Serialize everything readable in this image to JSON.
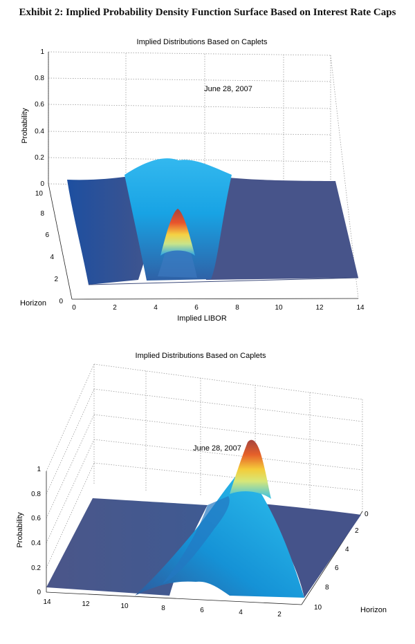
{
  "exhibit_title": "Exhibit 2:  Implied Probability Density Function Surface Based on Interest Rate Caps",
  "colors": {
    "surface_flat": "#47548a",
    "surface_mid": "#1f9fe0",
    "surface_peak": "#b5453d",
    "grid": "#9a9a9a"
  },
  "chart_data": [
    {
      "type": "surface",
      "view": "front",
      "title": "Implied Distributions Based on Caplets",
      "annotation": "June 28, 2007",
      "xlabel": "Implied LIBOR",
      "ylabel": "Horizon",
      "zlabel": "Probability",
      "x_ticks": [
        "0",
        "2",
        "4",
        "6",
        "8",
        "10",
        "12",
        "14"
      ],
      "y_ticks": [
        "0",
        "2",
        "4",
        "6",
        "8",
        "10"
      ],
      "z_ticks": [
        "0",
        "0.2",
        "0.4",
        "0.6",
        "0.8",
        "1"
      ],
      "xlim": [
        0,
        14
      ],
      "ylim": [
        0,
        10
      ],
      "zlim": [
        0,
        1
      ],
      "peak": {
        "libor": 5.3,
        "horizon": 0,
        "probability": 0.95
      },
      "far_ridge": {
        "libor": 5.3,
        "horizon": 10,
        "probability": 0.2
      }
    },
    {
      "type": "surface",
      "view": "rotated",
      "title": "Implied Distributions Based on Caplets",
      "annotation": "June 28, 2007",
      "xlabel": "",
      "ylabel": "Horizon",
      "zlabel": "Probability",
      "x_ticks": [
        "14",
        "12",
        "10",
        "8",
        "6",
        "4",
        "2"
      ],
      "y_ticks": [
        "0",
        "2",
        "4",
        "6",
        "8",
        "10"
      ],
      "z_ticks": [
        "0",
        "0.2",
        "0.4",
        "0.6",
        "0.8",
        "1"
      ],
      "xlim": [
        0,
        14
      ],
      "ylim": [
        0,
        10
      ],
      "zlim": [
        0,
        1
      ],
      "peak": {
        "libor": 5.3,
        "horizon": 0,
        "probability": 0.95
      },
      "far_ridge": {
        "libor": 5.3,
        "horizon": 10,
        "probability": 0.2
      }
    }
  ]
}
